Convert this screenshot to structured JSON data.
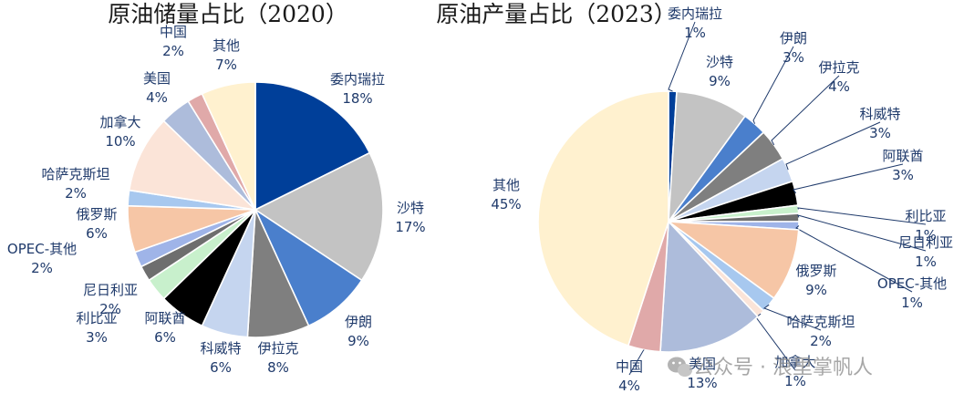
{
  "chart_data": [
    {
      "type": "pie",
      "title": "原油储量占比（2020）",
      "slices": [
        {
          "label": "委内瑞拉",
          "value": 18,
          "value_label": "18%",
          "color": "#003f99"
        },
        {
          "label": "沙特",
          "value": 17,
          "value_label": "17%",
          "color": "#c3c3c3"
        },
        {
          "label": "伊朗",
          "value": 9,
          "value_label": "9%",
          "color": "#4a7fcc"
        },
        {
          "label": "伊拉克",
          "value": 8,
          "value_label": "8%",
          "color": "#7f7f7f"
        },
        {
          "label": "科威特",
          "value": 6,
          "value_label": "6%",
          "color": "#c5d5ef"
        },
        {
          "label": "阿联酋",
          "value": 6,
          "value_label": "6%",
          "color": "#000000"
        },
        {
          "label": "利比亚",
          "value": 3,
          "value_label": "3%",
          "color": "#c8f0cc"
        },
        {
          "label": "尼日利亚",
          "value": 2,
          "value_label": "2%",
          "color": "#6e6e6e"
        },
        {
          "label": "OPEC-其他",
          "value": 2,
          "value_label": "2%",
          "color": "#9fb4e8"
        },
        {
          "label": "俄罗斯",
          "value": 6,
          "value_label": "6%",
          "color": "#f6c6a6"
        },
        {
          "label": "哈萨克斯坦",
          "value": 2,
          "value_label": "2%",
          "color": "#a7c8ef"
        },
        {
          "label": "加拿大",
          "value": 10,
          "value_label": "10%",
          "color": "#fbe4d8"
        },
        {
          "label": "美国",
          "value": 4,
          "value_label": "4%",
          "color": "#adbcdb"
        },
        {
          "label": "中国",
          "value": 2,
          "value_label": "2%",
          "color": "#e0a9a9"
        },
        {
          "label": "其他",
          "value": 7,
          "value_label": "7%",
          "color": "#fff1cf"
        }
      ]
    },
    {
      "type": "pie",
      "title": "原油产量占比（2023）",
      "slices": [
        {
          "label": "委内瑞拉",
          "value": 1,
          "value_label": "1%",
          "color": "#003f99"
        },
        {
          "label": "沙特",
          "value": 9,
          "value_label": "9%",
          "color": "#c3c3c3"
        },
        {
          "label": "伊朗",
          "value": 3,
          "value_label": "3%",
          "color": "#4a7fcc"
        },
        {
          "label": "伊拉克",
          "value": 4,
          "value_label": "4%",
          "color": "#7f7f7f"
        },
        {
          "label": "科威特",
          "value": 3,
          "value_label": "3%",
          "color": "#c5d5ef"
        },
        {
          "label": "阿联酋",
          "value": 3,
          "value_label": "3%",
          "color": "#000000"
        },
        {
          "label": "利比亚",
          "value": 1,
          "value_label": "1%",
          "color": "#c8f0cc"
        },
        {
          "label": "尼日利亚",
          "value": 1,
          "value_label": "1%",
          "color": "#6e6e6e"
        },
        {
          "label": "OPEC-其他",
          "value": 1,
          "value_label": "1%",
          "color": "#9fb4e8"
        },
        {
          "label": "俄罗斯",
          "value": 9,
          "value_label": "9%",
          "color": "#f6c6a6"
        },
        {
          "label": "哈萨克斯坦",
          "value": 2,
          "value_label": "2%",
          "color": "#a7c8ef"
        },
        {
          "label": "加拿大",
          "value": 1,
          "value_label": "1%",
          "color": "#fbe4d8"
        },
        {
          "label": "美国",
          "value": 13,
          "value_label": "13%",
          "color": "#adbcdb"
        },
        {
          "label": "中国",
          "value": 4,
          "value_label": "4%",
          "color": "#e0a9a9"
        },
        {
          "label": "其他",
          "value": 45,
          "value_label": "45%",
          "color": "#fff1cf"
        }
      ]
    }
  ],
  "watermark": {
    "text": "公众号 · 浪里掌帆人",
    "icon": "wechat-icon"
  }
}
